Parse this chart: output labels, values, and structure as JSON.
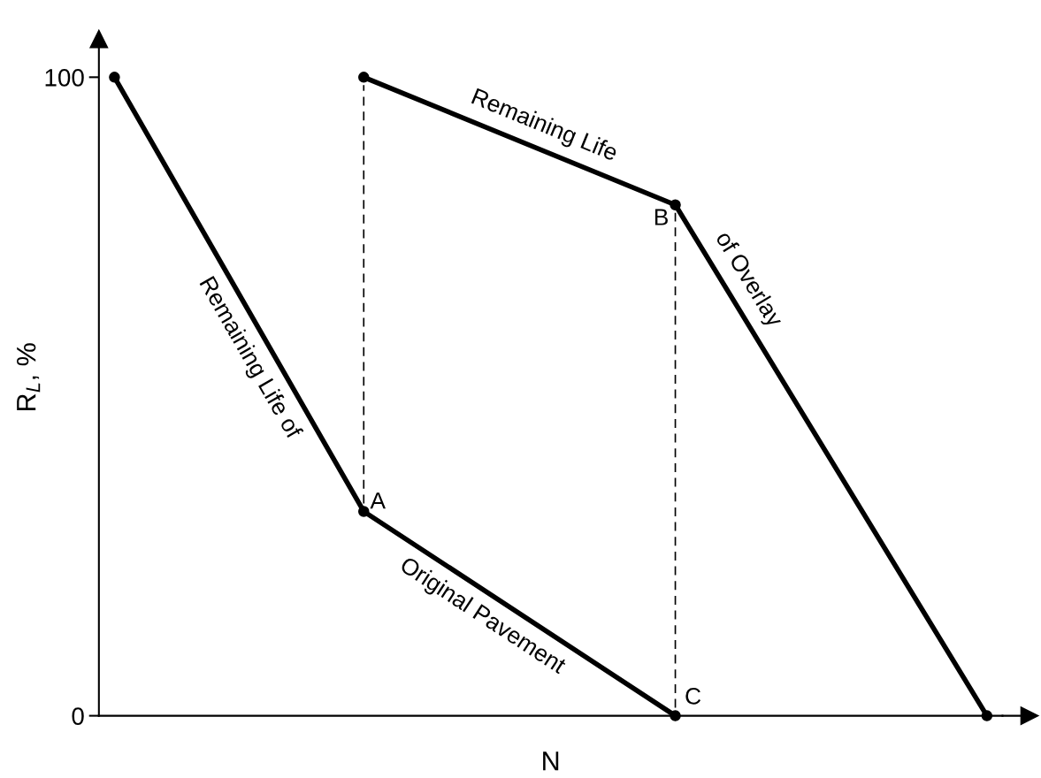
{
  "chart_data": {
    "type": "line",
    "xlabel": "N",
    "ylabel": "R$_{L}$, %",
    "categories": [
      null,
      null,
      null,
      null,
      null,
      null,
      null,
      null,
      null,
      null,
      null,
      null,
      null,
      null,
      null,
      null,
      null,
      null,
      null,
      null,
      null,
      null,
      null,
      null,
      null,
      null,
      null,
      null,
      null
    ],
    "ylim": [
      0,
      106
    ],
    "yticks": [
      0,
      100
    ],
    "grid": false,
    "marker": "circle",
    "line_style": "solid",
    "series": [
      {
        "color": "#000000",
        "values": [
          100,
          null,
          null,
          null,
          null,
          null,
          null,
          null,
          32,
          null,
          null,
          null,
          null,
          null,
          null,
          null,
          null,
          null,
          0,
          null,
          null,
          null,
          null,
          null,
          null,
          null,
          null,
          null,
          null
        ]
      },
      {
        "color": "#000000",
        "values": [
          null,
          null,
          null,
          null,
          null,
          null,
          null,
          null,
          100,
          null,
          null,
          null,
          null,
          null,
          null,
          null,
          null,
          null,
          80,
          null,
          null,
          null,
          null,
          null,
          null,
          null,
          null,
          null,
          0
        ]
      }
    ],
    "annotations": [
      "Remaining Life of",
      "Original Pavement",
      "Remaining Life",
      "of Overlay",
      "A",
      "B",
      "C"
    ]
  }
}
